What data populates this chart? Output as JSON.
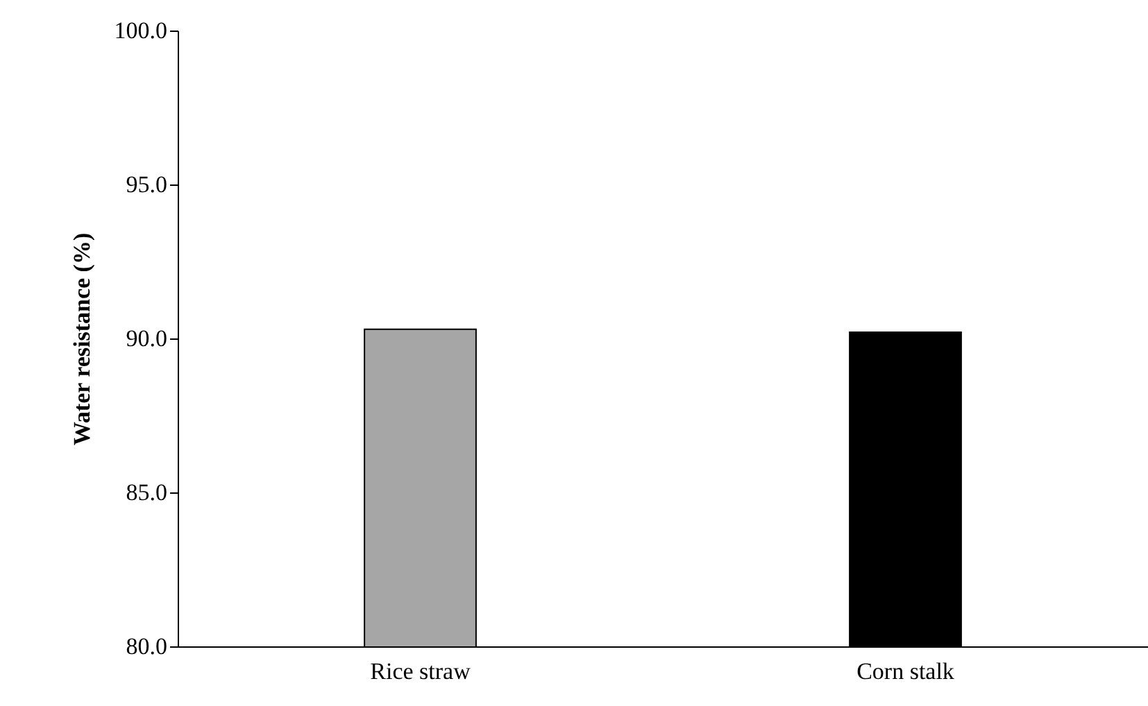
{
  "chart_data": {
    "type": "bar",
    "ylabel": "Water resistance (%)",
    "categories": [
      "Rice straw",
      "Corn stalk"
    ],
    "values": [
      90.3,
      90.2
    ],
    "colors": [
      "#a6a6a6",
      "#000000"
    ],
    "ylim": [
      80,
      100
    ],
    "yticks": [
      {
        "value": 80,
        "label": "80.0"
      },
      {
        "value": 85,
        "label": "85.0"
      },
      {
        "value": 90,
        "label": "90.0"
      },
      {
        "value": 95,
        "label": "95.0"
      },
      {
        "value": 100,
        "label": "100.0"
      }
    ],
    "grid": false
  }
}
